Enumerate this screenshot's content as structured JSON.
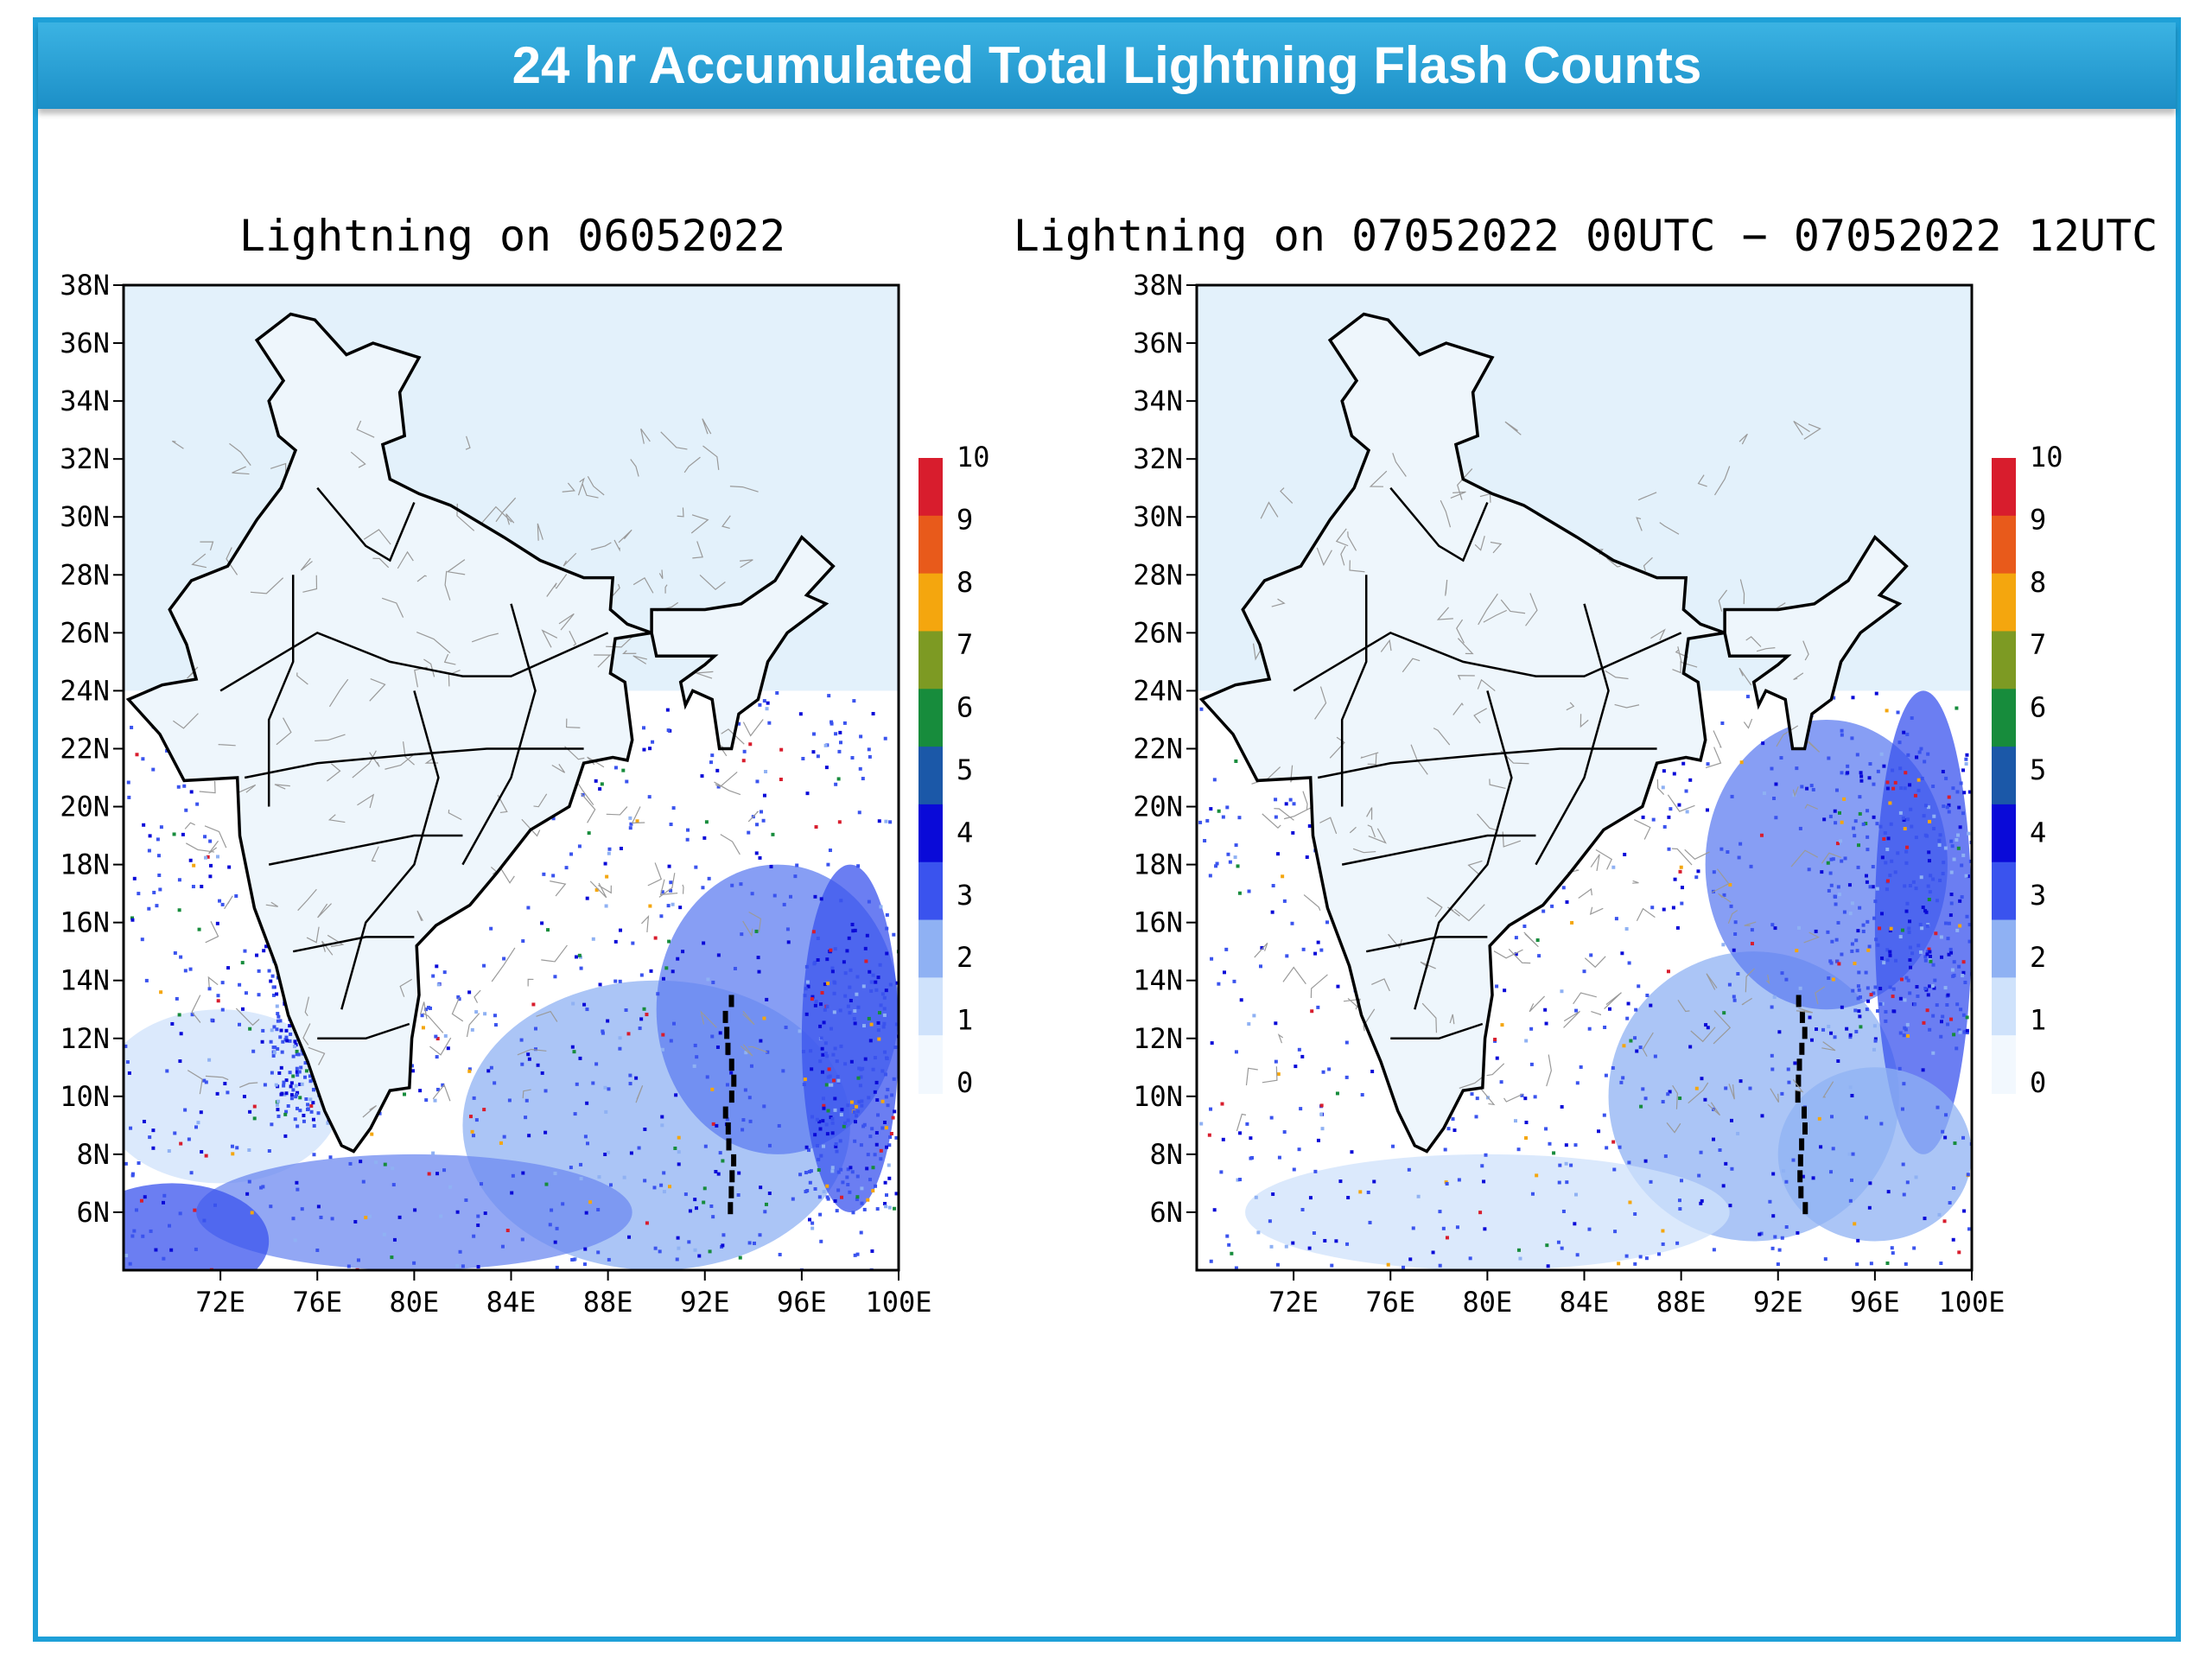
{
  "header": {
    "title": "24 hr Accumulated Total Lightning Flash Counts"
  },
  "colors": {
    "frame": "#1ea0d8",
    "banner": "#2aa6dc",
    "colorbar": [
      "#f2f8fe",
      "#cfe2fb",
      "#8fb1f3",
      "#3a53ee",
      "#0a0ad8",
      "#1b58a8",
      "#178c3c",
      "#7d9a23",
      "#f4a60e",
      "#e85a1b",
      "#d81d2d"
    ]
  },
  "panels": [
    {
      "title": "Lightning on 06052022"
    },
    {
      "title": "Lightning on 07052022 00UTC − 07052022 12UTC"
    }
  ],
  "axes": {
    "lat_labels": [
      "38N",
      "36N",
      "34N",
      "32N",
      "30N",
      "28N",
      "26N",
      "24N",
      "22N",
      "20N",
      "18N",
      "16N",
      "14N",
      "12N",
      "10N",
      "8N",
      "6N"
    ],
    "lon_labels": [
      "72E",
      "76E",
      "80E",
      "84E",
      "88E",
      "92E",
      "96E",
      "100E"
    ],
    "lat_values": [
      38,
      36,
      34,
      32,
      30,
      28,
      26,
      24,
      22,
      20,
      18,
      16,
      14,
      12,
      10,
      8,
      6
    ],
    "lon_values": [
      72,
      76,
      80,
      84,
      88,
      92,
      96,
      100
    ]
  },
  "colorbar_labels": [
    "10",
    "9",
    "8",
    "7",
    "6",
    "5",
    "4",
    "3",
    "2",
    "1",
    "0"
  ]
}
